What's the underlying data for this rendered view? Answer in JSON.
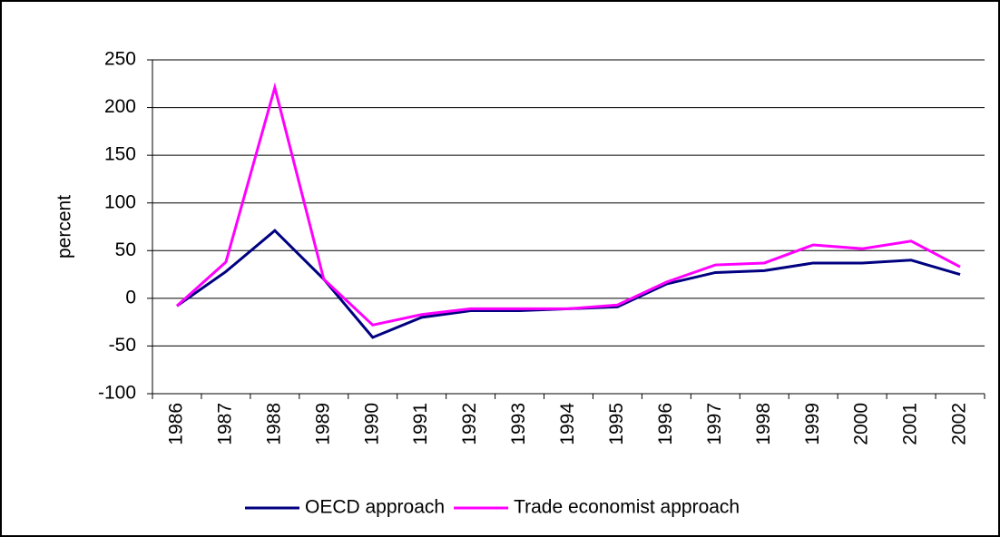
{
  "chart_data": {
    "type": "line",
    "y_label": "percent",
    "categories": [
      "1986",
      "1987",
      "1988",
      "1989",
      "1990",
      "1991",
      "1992",
      "1993",
      "1994",
      "1995",
      "1996",
      "1997",
      "1998",
      "1999",
      "2000",
      "2001",
      "2002"
    ],
    "series": [
      {
        "name": "OECD approach",
        "color": "#000080",
        "values": [
          -8,
          28,
          71,
          20,
          -41,
          -20,
          -13,
          -13,
          -11,
          -9,
          15,
          27,
          29,
          37,
          37,
          40,
          25
        ]
      },
      {
        "name": "Trade economist approach",
        "color": "#ff00ff",
        "values": [
          -8,
          38,
          221,
          20,
          -28,
          -17,
          -11,
          -11,
          -11,
          -7,
          17,
          35,
          37,
          56,
          52,
          60,
          33
        ]
      }
    ],
    "ylim": [
      -100,
      250
    ],
    "yticks": [
      -100,
      -50,
      0,
      50,
      100,
      150,
      200,
      250
    ],
    "grid": true,
    "legend": "bottom"
  }
}
